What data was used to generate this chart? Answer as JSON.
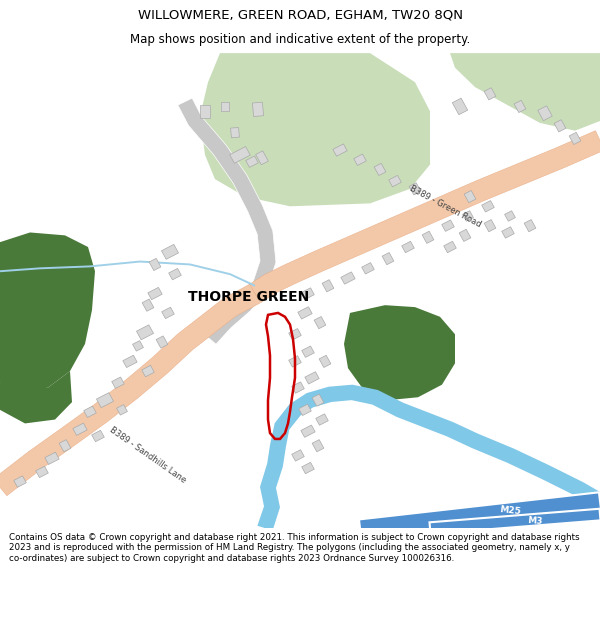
{
  "title_line1": "WILLOWMERE, GREEN ROAD, EGHAM, TW20 8QN",
  "title_line2": "Map shows position and indicative extent of the property.",
  "footer_text": "Contains OS data © Crown copyright and database right 2021. This information is subject to Crown copyright and database rights 2023 and is reproduced with the permission of HM Land Registry. The polygons (including the associated geometry, namely x, y co-ordinates) are subject to Crown copyright and database rights 2023 Ordnance Survey 100026316.",
  "map_bg": "#ffffff",
  "road_color": "#f2c8a8",
  "road_edge_color": "#e8a880",
  "green_light": "#c8ddb8",
  "green_dark": "#4a7a3a",
  "building_fill": "#d8d8d8",
  "building_edge": "#aaaaaa",
  "river_color": "#80c8e8",
  "motorway_color": "#5090d0",
  "white": "#ffffff",
  "road_text": "#444444",
  "red_plot": "#cc0000",
  "light_blue_line": "#a0d0e8",
  "gray_road": "#c8c8c8"
}
